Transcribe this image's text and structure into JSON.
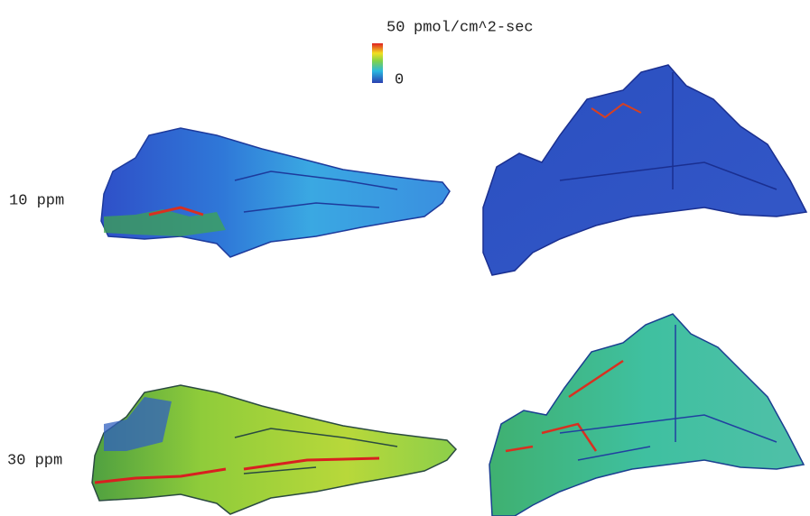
{
  "colorbar": {
    "max_label": "50",
    "unit": "pmol/cm^2-sec",
    "min_label": "0"
  },
  "rows": [
    {
      "label": "10 ppm"
    },
    {
      "label": "30 ppm"
    }
  ]
}
